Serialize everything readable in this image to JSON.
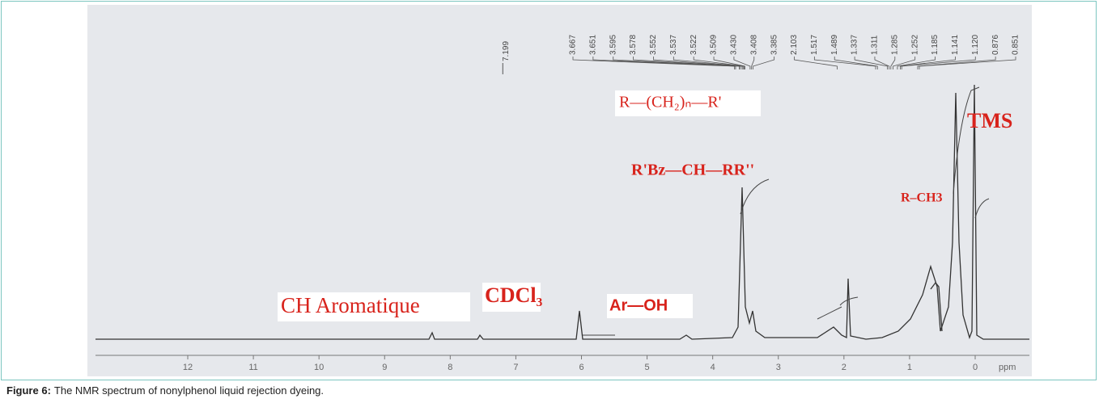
{
  "figure": {
    "axis_ticks": [
      12,
      11,
      10,
      9,
      8,
      7,
      6,
      5,
      4,
      3,
      2,
      1,
      0
    ],
    "axis_unit": "ppm",
    "solvent_peak_label": "7.199",
    "peak_labels": [
      "3.667",
      "3.651",
      "3.595",
      "3.578",
      "3.552",
      "3.537",
      "3.522",
      "3.509",
      "3.430",
      "3.408",
      "3.385",
      "2.103",
      "1.517",
      "1.489",
      "1.337",
      "1.311",
      "1.285",
      "1.252",
      "1.185",
      "1.141",
      "1.120",
      "0.876",
      "0.851"
    ],
    "annotations": [
      "CH Aromatique",
      "CDCl₃",
      "Ar—OH",
      "R'Bz—CH—RR''",
      "R—(CH₂)ₙ—R'",
      "R–CH3",
      "TMS"
    ]
  },
  "caption": {
    "label": "Figure 6:",
    "text": "The NMR spectrum of nonylphenol liquid rejection dyeing."
  }
}
